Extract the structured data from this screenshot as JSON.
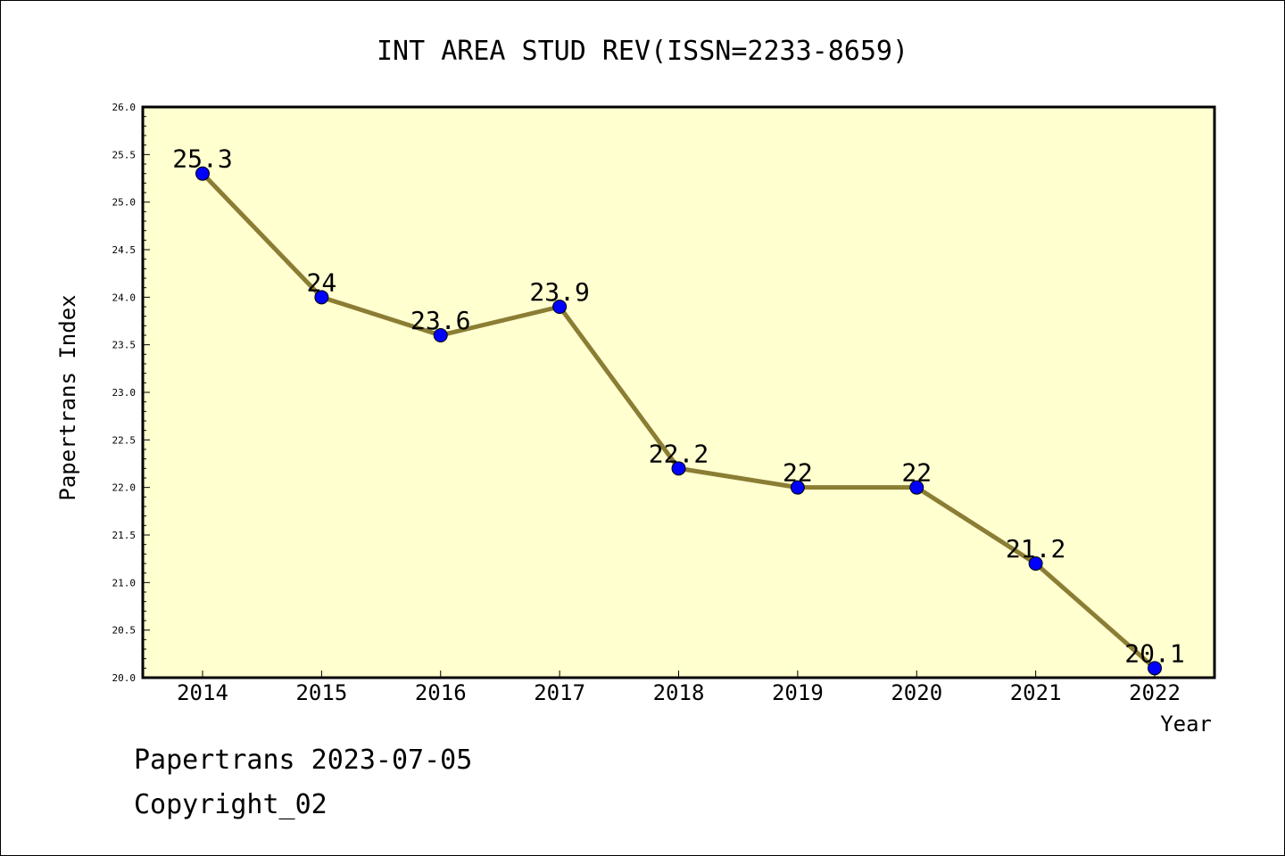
{
  "chart_data": {
    "type": "line",
    "title": "INT AREA STUD REV(ISSN=2233-8659)",
    "xlabel": "Year",
    "ylabel": "Papertrans Index",
    "categories": [
      "2014",
      "2015",
      "2016",
      "2017",
      "2018",
      "2019",
      "2020",
      "2021",
      "2022"
    ],
    "series": [
      {
        "values": [
          25.3,
          24,
          23.6,
          23.9,
          22.2,
          22,
          22,
          21.2,
          20.1
        ],
        "labels": [
          "25.3",
          "24",
          "23.6",
          "23.9",
          "22.2",
          "22",
          "22",
          "21.2",
          "20.1"
        ]
      }
    ],
    "ylim": [
      20.0,
      26.0
    ],
    "yticks": [
      "20.0",
      "20.5",
      "21.0",
      "21.5",
      "22.0",
      "22.5",
      "23.0",
      "23.5",
      "24.0",
      "24.5",
      "25.0",
      "25.5",
      "26.0"
    ],
    "grid": false,
    "colors": {
      "plot_background": "#ffffd0",
      "line": "#8b7d34",
      "marker": "#0000ff"
    }
  },
  "footer": {
    "line1": "Papertrans 2023-07-05",
    "line2": "Copyright_02"
  }
}
